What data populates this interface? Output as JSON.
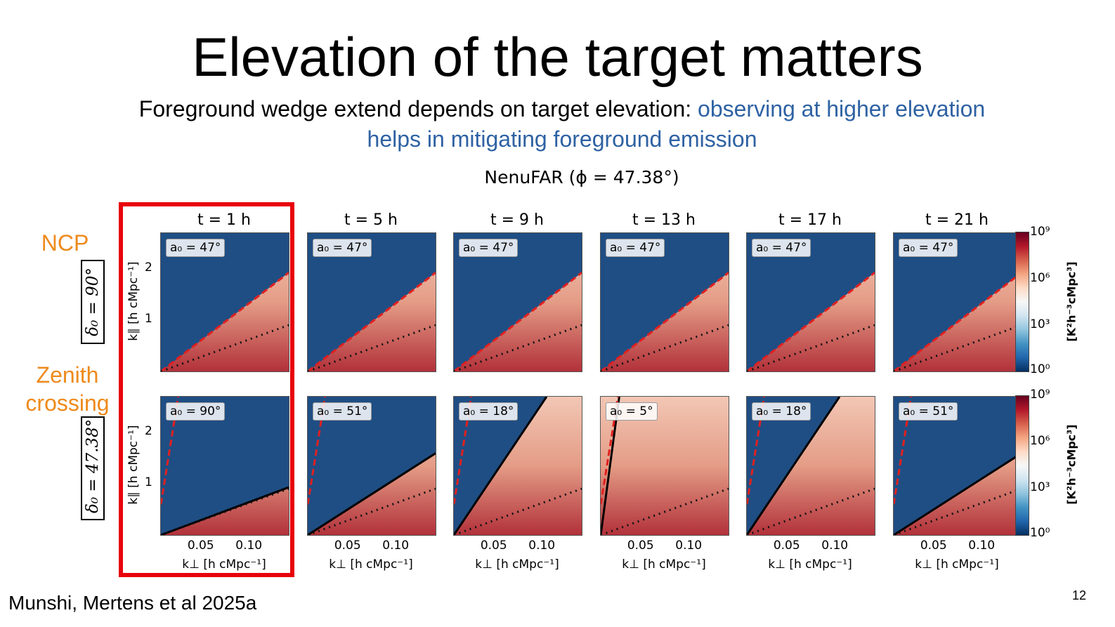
{
  "slide": {
    "title": "Elevation of the target matters",
    "subtitle_black": "Foreground wedge extend depends on target elevation: ",
    "subtitle_blue": "observing at higher elevation helps in mitigating foreground emission",
    "accent_color": "#2e62a3",
    "citation": "Munshi, Mertens et al 2025a",
    "page_number": "12"
  },
  "figure": {
    "title": "NenuFAR (ϕ = 47.38°)",
    "row_labels": [
      {
        "name": "NCP",
        "declination": "δ₀ = 90°"
      },
      {
        "name": "Zenith crossing",
        "declination": "δ₀ = 47.38°"
      }
    ],
    "columns": [
      "t = 1 h",
      "t = 5 h",
      "t = 9 h",
      "t = 13 h",
      "t = 17 h",
      "t = 21 h"
    ],
    "ylabel": "k∥ [h cMpc⁻¹]",
    "xlabel": "k⊥ [h cMpc⁻¹]",
    "y_ticks": [
      "2",
      "1"
    ],
    "x_ticks": [
      "0.05",
      "0.10"
    ],
    "colorbar_label": "[K²h⁻³cMpc³]",
    "colorbar_ticks": [
      "10⁹",
      "10⁶",
      "10³",
      "10⁰"
    ],
    "row1_annotations": [
      "a₀ = 47°",
      "a₀ = 47°",
      "a₀ = 47°",
      "a₀ = 47°",
      "a₀ = 47°",
      "a₀ = 47°"
    ],
    "row2_annotations": [
      "a₀ = 90°",
      "a₀ = 51°",
      "a₀ = 18°",
      "a₀ = 5°",
      "a₀ = 18°",
      "a₀ = 51°"
    ],
    "highlight_color": "#e8000b",
    "label_color": "#ee8a1c"
  },
  "chart_data": {
    "type": "heatmap",
    "title": "NenuFAR (ϕ = 47.38°)",
    "xlabel": "k⊥ [h cMpc⁻¹]",
    "ylabel": "k∥ [h cMpc⁻¹]",
    "colorbar": {
      "label": "[K²h⁻³cMpc³]",
      "range": [
        1,
        1000000000
      ],
      "scale": "log"
    },
    "xlim": [
      0.007,
      0.14
    ],
    "ylim": [
      0,
      2.7
    ],
    "row1_slope": 14.5,
    "row1_elevation_deg": [
      47,
      47,
      47,
      47,
      47,
      47
    ],
    "row2_elevation_deg": [
      90,
      51,
      18,
      5,
      18,
      51
    ],
    "row2_solid_slope": [
      7.0,
      12.0,
      28.0,
      140.0,
      28.0,
      12.0
    ]
  }
}
